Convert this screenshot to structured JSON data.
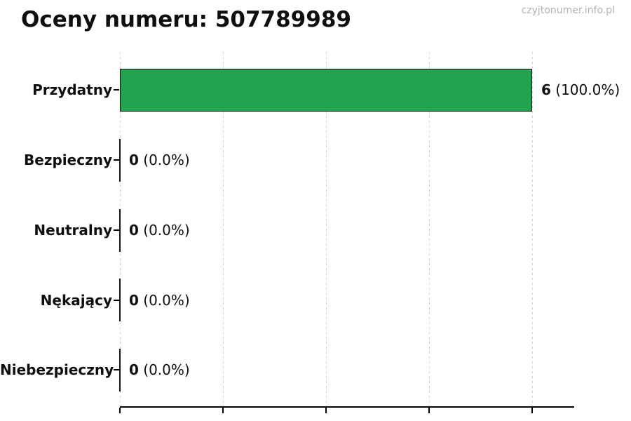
{
  "header": {
    "title": "Oceny numeru: 507789989"
  },
  "watermark": "czyjtonumer.info.pl",
  "chart_data": {
    "type": "bar",
    "orientation": "horizontal",
    "title": "Oceny numeru: 507789989",
    "categories": [
      "Przydatny",
      "Bezpieczny",
      "Neutralny",
      "Nękający",
      "Niebezpieczny"
    ],
    "values": [
      6,
      0,
      0,
      0,
      0
    ],
    "percentages": [
      100.0,
      0.0,
      0.0,
      0.0,
      0.0
    ],
    "value_labels": [
      "6 (100.0%)",
      "0 (0.0%)",
      "0 (0.0%)",
      "0 (0.0%)",
      "0 (0.0%)"
    ],
    "xlim": [
      0,
      6.6
    ],
    "x_gridline_values": [
      0,
      1.5,
      3,
      4.5,
      6
    ],
    "x_tick_labels_visible": false,
    "grid": "vertical dashed",
    "legend_position": "none",
    "bar_color": "#22a34f",
    "bar_edge_color": "#141414",
    "zero_bar_color": "#141414",
    "axis_color": "#000000",
    "gridline_color": "#cfcfcf",
    "text_color": "#0e0e0e",
    "watermark_color": "#b3b3b3"
  }
}
